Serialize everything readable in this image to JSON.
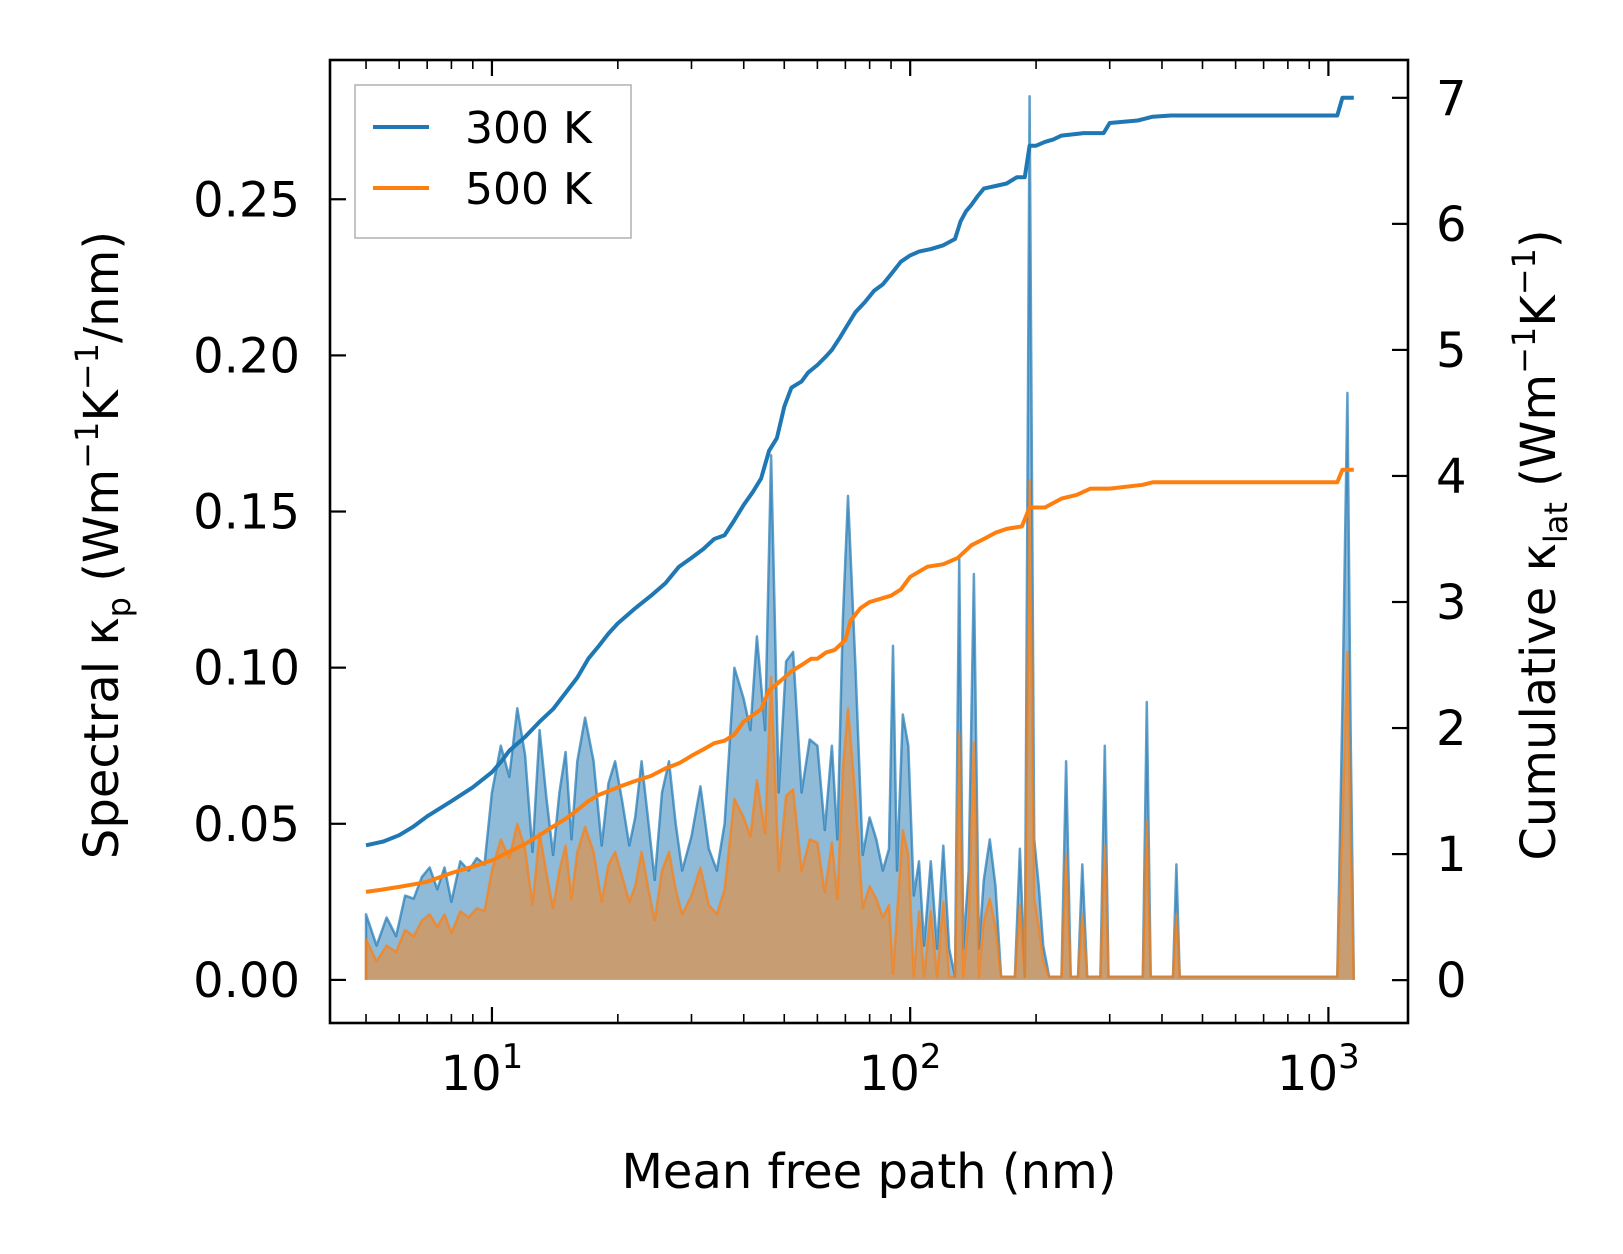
{
  "chart_data": {
    "type": "line",
    "xscale": "log",
    "xlabel": "Mean free path (nm)",
    "ylabel_left": {
      "prefix": "Spectral κ",
      "sub": "p",
      "unit_a": " (Wm",
      "sup1": "−1",
      "unit_b": "K",
      "sup2": "−1",
      "unit_c": "/nm)"
    },
    "ylabel_right": {
      "prefix": "Cumulative κ",
      "sub": "lat",
      "unit_a": " (Wm",
      "sup1": "−1",
      "unit_b": "K",
      "sup2": "−1",
      "unit_c": ")"
    },
    "xlim": [
      4.1,
      1550
    ],
    "ylim_left": [
      -0.0138,
      0.2946
    ],
    "ylim_right": [
      -0.34,
      7.3
    ],
    "x_ticks": [
      {
        "value": 10,
        "base": "10",
        "exp": "1"
      },
      {
        "value": 100,
        "base": "10",
        "exp": "2"
      },
      {
        "value": 1000,
        "base": "10",
        "exp": "3"
      }
    ],
    "y_ticks_left": [
      "0.00",
      "0.05",
      "0.10",
      "0.15",
      "0.20",
      "0.25"
    ],
    "y_ticks_right": [
      "0",
      "1",
      "2",
      "3",
      "4",
      "5",
      "6",
      "7"
    ],
    "colors": {
      "300 K": "#1f77b4",
      "500 K": "#ff7f0e"
    },
    "legend": {
      "position": "top-left",
      "entries": [
        "300 K",
        "500 K"
      ]
    },
    "spectral_300K": [
      [
        5,
        0
      ],
      [
        5,
        0.021
      ],
      [
        5.3,
        0.011
      ],
      [
        5.6,
        0.02
      ],
      [
        5.9,
        0.014
      ],
      [
        6.2,
        0.027
      ],
      [
        6.5,
        0.026
      ],
      [
        6.8,
        0.033
      ],
      [
        7.1,
        0.036
      ],
      [
        7.4,
        0.029
      ],
      [
        7.7,
        0.036
      ],
      [
        8.0,
        0.025
      ],
      [
        8.4,
        0.038
      ],
      [
        8.8,
        0.035
      ],
      [
        9.2,
        0.039
      ],
      [
        9.6,
        0.037
      ],
      [
        10.0,
        0.06
      ],
      [
        10.5,
        0.075
      ],
      [
        11.0,
        0.065
      ],
      [
        11.5,
        0.087
      ],
      [
        12.0,
        0.072
      ],
      [
        12.5,
        0.041
      ],
      [
        13.0,
        0.08
      ],
      [
        13.5,
        0.058
      ],
      [
        14.0,
        0.04
      ],
      [
        14.5,
        0.06
      ],
      [
        15.0,
        0.073
      ],
      [
        15.5,
        0.045
      ],
      [
        16.0,
        0.07
      ],
      [
        16.7,
        0.084
      ],
      [
        17.5,
        0.07
      ],
      [
        18.3,
        0.043
      ],
      [
        19.0,
        0.063
      ],
      [
        19.7,
        0.07
      ],
      [
        20.5,
        0.057
      ],
      [
        21.3,
        0.043
      ],
      [
        22.0,
        0.052
      ],
      [
        22.8,
        0.07
      ],
      [
        23.6,
        0.052
      ],
      [
        24.5,
        0.032
      ],
      [
        25.5,
        0.06
      ],
      [
        26.5,
        0.07
      ],
      [
        27.5,
        0.05
      ],
      [
        28.5,
        0.035
      ],
      [
        30.0,
        0.046
      ],
      [
        31.5,
        0.062
      ],
      [
        33.0,
        0.042
      ],
      [
        34.5,
        0.035
      ],
      [
        36.0,
        0.05
      ],
      [
        38.0,
        0.1
      ],
      [
        40.0,
        0.09
      ],
      [
        41.5,
        0.08
      ],
      [
        43.0,
        0.11
      ],
      [
        45.0,
        0.08
      ],
      [
        46.5,
        0.168
      ],
      [
        48.5,
        0.06
      ],
      [
        50.5,
        0.102
      ],
      [
        52.5,
        0.105
      ],
      [
        55.0,
        0.06
      ],
      [
        57.5,
        0.077
      ],
      [
        60.0,
        0.075
      ],
      [
        62.5,
        0.048
      ],
      [
        65.0,
        0.075
      ],
      [
        67.0,
        0.045
      ],
      [
        69.0,
        0.115
      ],
      [
        71.0,
        0.155
      ],
      [
        74.0,
        0.1
      ],
      [
        77.0,
        0.04
      ],
      [
        80.0,
        0.052
      ],
      [
        83.0,
        0.045
      ],
      [
        86.0,
        0.035
      ],
      [
        89.0,
        0.042
      ],
      [
        91.0,
        0.107
      ],
      [
        93.0,
        0.035
      ],
      [
        96.0,
        0.085
      ],
      [
        99.0,
        0.075
      ],
      [
        102.0,
        0.027
      ],
      [
        105.0,
        0.038
      ],
      [
        108.0,
        0.011
      ],
      [
        112.0,
        0.038
      ],
      [
        116.0,
        0.01
      ],
      [
        120.0,
        0.043
      ],
      [
        124.0,
        0.01
      ],
      [
        128.0,
        0.001
      ],
      [
        131.0,
        0.135
      ],
      [
        134.0,
        0.01
      ],
      [
        138.0,
        0.035
      ],
      [
        142.0,
        0.13
      ],
      [
        146.0,
        0.01
      ],
      [
        150.0,
        0.032
      ],
      [
        155.0,
        0.045
      ],
      [
        160.0,
        0.03
      ],
      [
        165.0,
        0.001
      ],
      [
        178.0,
        0.001
      ],
      [
        183.0,
        0.042
      ],
      [
        188.0,
        0.001
      ],
      [
        193.0,
        0.283
      ],
      [
        198.0,
        0.045
      ],
      [
        203.0,
        0.03
      ],
      [
        208.0,
        0.011
      ],
      [
        215.0,
        0.001
      ],
      [
        230.0,
        0.001
      ],
      [
        236.0,
        0.07
      ],
      [
        242.0,
        0.001
      ],
      [
        252.0,
        0.001
      ],
      [
        258.0,
        0.037
      ],
      [
        265.0,
        0.001
      ],
      [
        285.0,
        0.001
      ],
      [
        292.0,
        0.075
      ],
      [
        298.0,
        0.001
      ],
      [
        360.0,
        0.001
      ],
      [
        368.0,
        0.089
      ],
      [
        376.0,
        0.001
      ],
      [
        425.0,
        0.001
      ],
      [
        433.0,
        0.037
      ],
      [
        441.0,
        0.001
      ],
      [
        1050.0,
        0.001
      ],
      [
        1080.0,
        0.087
      ],
      [
        1110.0,
        0.188
      ],
      [
        1130.0,
        0.08
      ],
      [
        1150.0,
        0
      ]
    ],
    "spectral_500K": [
      [
        5,
        0
      ],
      [
        5,
        0.013
      ],
      [
        5.3,
        0.006
      ],
      [
        5.6,
        0.011
      ],
      [
        5.9,
        0.009
      ],
      [
        6.2,
        0.016
      ],
      [
        6.5,
        0.014
      ],
      [
        6.8,
        0.019
      ],
      [
        7.1,
        0.021
      ],
      [
        7.4,
        0.017
      ],
      [
        7.7,
        0.021
      ],
      [
        8.0,
        0.015
      ],
      [
        8.4,
        0.022
      ],
      [
        8.8,
        0.02
      ],
      [
        9.2,
        0.023
      ],
      [
        9.6,
        0.022
      ],
      [
        10.0,
        0.035
      ],
      [
        10.5,
        0.045
      ],
      [
        11.0,
        0.039
      ],
      [
        11.5,
        0.05
      ],
      [
        12.0,
        0.042
      ],
      [
        12.5,
        0.024
      ],
      [
        13.0,
        0.047
      ],
      [
        13.5,
        0.034
      ],
      [
        14.0,
        0.023
      ],
      [
        14.5,
        0.035
      ],
      [
        15.0,
        0.043
      ],
      [
        15.5,
        0.026
      ],
      [
        16.0,
        0.041
      ],
      [
        16.7,
        0.049
      ],
      [
        17.5,
        0.041
      ],
      [
        18.3,
        0.025
      ],
      [
        19.0,
        0.037
      ],
      [
        19.7,
        0.041
      ],
      [
        20.5,
        0.033
      ],
      [
        21.3,
        0.025
      ],
      [
        22.0,
        0.03
      ],
      [
        22.8,
        0.041
      ],
      [
        23.6,
        0.03
      ],
      [
        24.5,
        0.019
      ],
      [
        25.5,
        0.035
      ],
      [
        26.5,
        0.041
      ],
      [
        27.5,
        0.029
      ],
      [
        28.5,
        0.021
      ],
      [
        30.0,
        0.027
      ],
      [
        31.5,
        0.036
      ],
      [
        33.0,
        0.024
      ],
      [
        34.5,
        0.021
      ],
      [
        36.0,
        0.029
      ],
      [
        38.0,
        0.058
      ],
      [
        40.0,
        0.052
      ],
      [
        41.5,
        0.046
      ],
      [
        43.0,
        0.064
      ],
      [
        45.0,
        0.047
      ],
      [
        46.5,
        0.097
      ],
      [
        48.5,
        0.035
      ],
      [
        50.5,
        0.059
      ],
      [
        52.5,
        0.061
      ],
      [
        55.0,
        0.035
      ],
      [
        57.5,
        0.045
      ],
      [
        60.0,
        0.044
      ],
      [
        62.5,
        0.028
      ],
      [
        65.0,
        0.044
      ],
      [
        67.0,
        0.026
      ],
      [
        69.0,
        0.067
      ],
      [
        71.0,
        0.087
      ],
      [
        74.0,
        0.058
      ],
      [
        77.0,
        0.023
      ],
      [
        80.0,
        0.03
      ],
      [
        83.0,
        0.026
      ],
      [
        86.0,
        0.02
      ],
      [
        89.0,
        0.024
      ],
      [
        91.0,
        0.002
      ],
      [
        96.0,
        0.048
      ],
      [
        99.0,
        0.04
      ],
      [
        102.0,
        0.001
      ],
      [
        105.0,
        0.022
      ],
      [
        108.0,
        0.001
      ],
      [
        112.0,
        0.022
      ],
      [
        116.0,
        0.001
      ],
      [
        120.0,
        0.025
      ],
      [
        124.0,
        0.001
      ],
      [
        128.0,
        0.001
      ],
      [
        131.0,
        0.079
      ],
      [
        134.0,
        0.001
      ],
      [
        138.0,
        0.02
      ],
      [
        142.0,
        0.076
      ],
      [
        146.0,
        0.001
      ],
      [
        150.0,
        0.019
      ],
      [
        155.0,
        0.026
      ],
      [
        160.0,
        0.017
      ],
      [
        165.0,
        0.001
      ],
      [
        178.0,
        0.001
      ],
      [
        183.0,
        0.024
      ],
      [
        188.0,
        0.001
      ],
      [
        193.0,
        0.16
      ],
      [
        198.0,
        0.026
      ],
      [
        203.0,
        0.017
      ],
      [
        208.0,
        0.006
      ],
      [
        215.0,
        0.001
      ],
      [
        230.0,
        0.001
      ],
      [
        236.0,
        0.04
      ],
      [
        242.0,
        0.001
      ],
      [
        252.0,
        0.001
      ],
      [
        258.0,
        0.021
      ],
      [
        265.0,
        0.001
      ],
      [
        285.0,
        0.001
      ],
      [
        292.0,
        0.043
      ],
      [
        298.0,
        0.001
      ],
      [
        360.0,
        0.001
      ],
      [
        368.0,
        0.051
      ],
      [
        376.0,
        0.001
      ],
      [
        425.0,
        0.001
      ],
      [
        433.0,
        0.021
      ],
      [
        441.0,
        0.001
      ],
      [
        1050.0,
        0.001
      ],
      [
        1080.0,
        0.05
      ],
      [
        1110.0,
        0.105
      ],
      [
        1130.0,
        0.046
      ],
      [
        1150.0,
        0
      ]
    ],
    "cumulative_300K": [
      [
        5,
        1.07
      ],
      [
        5.5,
        1.1
      ],
      [
        6,
        1.15
      ],
      [
        6.5,
        1.22
      ],
      [
        7,
        1.3
      ],
      [
        8,
        1.42
      ],
      [
        9,
        1.53
      ],
      [
        10,
        1.65
      ],
      [
        10.5,
        1.73
      ],
      [
        11,
        1.82
      ],
      [
        12,
        1.93
      ],
      [
        13,
        2.05
      ],
      [
        14,
        2.15
      ],
      [
        15,
        2.28
      ],
      [
        16,
        2.4
      ],
      [
        17,
        2.55
      ],
      [
        18,
        2.65
      ],
      [
        19,
        2.75
      ],
      [
        20,
        2.83
      ],
      [
        22,
        2.95
      ],
      [
        24,
        3.05
      ],
      [
        26,
        3.15
      ],
      [
        28,
        3.28
      ],
      [
        30,
        3.35
      ],
      [
        32,
        3.42
      ],
      [
        34,
        3.5
      ],
      [
        36,
        3.53
      ],
      [
        38,
        3.65
      ],
      [
        40,
        3.77
      ],
      [
        42,
        3.87
      ],
      [
        44,
        3.98
      ],
      [
        46,
        4.2
      ],
      [
        47,
        4.25
      ],
      [
        48,
        4.3
      ],
      [
        50,
        4.55
      ],
      [
        52,
        4.7
      ],
      [
        55,
        4.75
      ],
      [
        57,
        4.82
      ],
      [
        60,
        4.88
      ],
      [
        63,
        4.95
      ],
      [
        65,
        5.0
      ],
      [
        68,
        5.1
      ],
      [
        70,
        5.17
      ],
      [
        74,
        5.3
      ],
      [
        78,
        5.38
      ],
      [
        82,
        5.47
      ],
      [
        86,
        5.52
      ],
      [
        90,
        5.6
      ],
      [
        95,
        5.7
      ],
      [
        100,
        5.75
      ],
      [
        105,
        5.78
      ],
      [
        112,
        5.8
      ],
      [
        120,
        5.83
      ],
      [
        128,
        5.88
      ],
      [
        132,
        6.02
      ],
      [
        136,
        6.1
      ],
      [
        140,
        6.15
      ],
      [
        145,
        6.22
      ],
      [
        150,
        6.28
      ],
      [
        160,
        6.3
      ],
      [
        170,
        6.32
      ],
      [
        180,
        6.37
      ],
      [
        188,
        6.37
      ],
      [
        193,
        6.62
      ],
      [
        200,
        6.62
      ],
      [
        210,
        6.65
      ],
      [
        220,
        6.67
      ],
      [
        230,
        6.7
      ],
      [
        260,
        6.72
      ],
      [
        290,
        6.72
      ],
      [
        300,
        6.8
      ],
      [
        350,
        6.82
      ],
      [
        380,
        6.85
      ],
      [
        420,
        6.86
      ],
      [
        1050,
        6.86
      ],
      [
        1080,
        7.0
      ],
      [
        1150,
        7.0
      ]
    ],
    "cumulative_500K": [
      [
        5,
        0.7
      ],
      [
        5.5,
        0.72
      ],
      [
        6,
        0.74
      ],
      [
        6.5,
        0.76
      ],
      [
        7,
        0.78
      ],
      [
        8,
        0.85
      ],
      [
        9,
        0.9
      ],
      [
        10,
        0.95
      ],
      [
        11,
        1.02
      ],
      [
        12,
        1.08
      ],
      [
        13,
        1.15
      ],
      [
        14,
        1.22
      ],
      [
        15,
        1.28
      ],
      [
        16,
        1.35
      ],
      [
        17,
        1.42
      ],
      [
        18,
        1.47
      ],
      [
        19,
        1.5
      ],
      [
        20,
        1.53
      ],
      [
        22,
        1.58
      ],
      [
        24,
        1.62
      ],
      [
        26,
        1.68
      ],
      [
        28,
        1.72
      ],
      [
        30,
        1.78
      ],
      [
        32,
        1.83
      ],
      [
        34,
        1.88
      ],
      [
        36,
        1.9
      ],
      [
        38,
        1.95
      ],
      [
        40,
        2.05
      ],
      [
        44,
        2.15
      ],
      [
        46,
        2.3
      ],
      [
        48,
        2.35
      ],
      [
        50,
        2.4
      ],
      [
        52,
        2.45
      ],
      [
        55,
        2.5
      ],
      [
        58,
        2.55
      ],
      [
        60,
        2.55
      ],
      [
        63,
        2.6
      ],
      [
        66,
        2.62
      ],
      [
        70,
        2.7
      ],
      [
        72,
        2.85
      ],
      [
        76,
        2.95
      ],
      [
        80,
        3.0
      ],
      [
        90,
        3.05
      ],
      [
        95,
        3.1
      ],
      [
        100,
        3.2
      ],
      [
        110,
        3.28
      ],
      [
        120,
        3.3
      ],
      [
        130,
        3.35
      ],
      [
        140,
        3.45
      ],
      [
        150,
        3.5
      ],
      [
        160,
        3.55
      ],
      [
        170,
        3.58
      ],
      [
        185,
        3.6
      ],
      [
        193,
        3.75
      ],
      [
        210,
        3.75
      ],
      [
        230,
        3.82
      ],
      [
        250,
        3.85
      ],
      [
        270,
        3.9
      ],
      [
        300,
        3.9
      ],
      [
        360,
        3.93
      ],
      [
        380,
        3.95
      ],
      [
        1050,
        3.95
      ],
      [
        1080,
        4.05
      ],
      [
        1150,
        4.05
      ]
    ]
  }
}
